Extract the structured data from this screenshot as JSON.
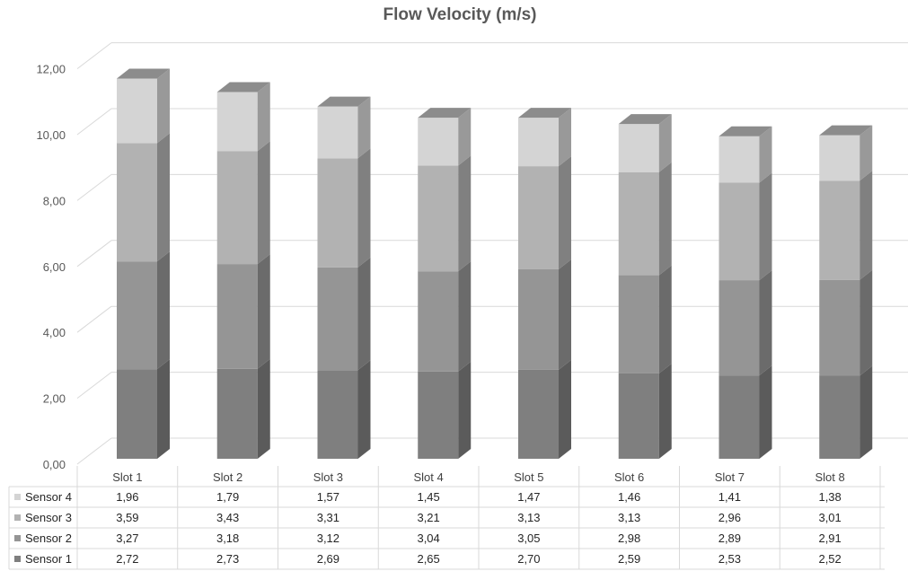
{
  "chart_data": {
    "type": "bar",
    "stacked": true,
    "three_d": true,
    "title": "Flow Velocity (m/s)",
    "categories": [
      "Slot 1",
      "Slot 2",
      "Slot 3",
      "Slot 4",
      "Slot 5",
      "Slot 6",
      "Slot 7",
      "Slot 8"
    ],
    "series": [
      {
        "name": "Sensor 1",
        "color": "#7f7f7f",
        "values": [
          2.72,
          2.73,
          2.69,
          2.65,
          2.7,
          2.59,
          2.53,
          2.52
        ],
        "labels": [
          "2,72",
          "2,73",
          "2,69",
          "2,65",
          "2,70",
          "2,59",
          "2,53",
          "2,52"
        ]
      },
      {
        "name": "Sensor 2",
        "color": "#959595",
        "values": [
          3.27,
          3.18,
          3.12,
          3.04,
          3.05,
          2.98,
          2.89,
          2.91
        ],
        "labels": [
          "3,27",
          "3,18",
          "3,12",
          "3,04",
          "3,05",
          "2,98",
          "2,89",
          "2,91"
        ]
      },
      {
        "name": "Sensor 3",
        "color": "#b2b2b2",
        "values": [
          3.59,
          3.43,
          3.31,
          3.21,
          3.13,
          3.13,
          2.96,
          3.01
        ],
        "labels": [
          "3,59",
          "3,43",
          "3,31",
          "3,21",
          "3,13",
          "3,13",
          "2,96",
          "3,01"
        ]
      },
      {
        "name": "Sensor 4",
        "color": "#d4d4d4",
        "values": [
          1.96,
          1.79,
          1.57,
          1.45,
          1.47,
          1.46,
          1.41,
          1.38
        ],
        "labels": [
          "1,96",
          "1,79",
          "1,57",
          "1,45",
          "1,47",
          "1,46",
          "1,41",
          "1,38"
        ]
      }
    ],
    "ylim": [
      0,
      12
    ],
    "y_ticks": [
      0,
      2,
      4,
      6,
      8,
      10,
      12
    ],
    "y_tick_labels": [
      "0,00",
      "2,00",
      "4,00",
      "6,00",
      "8,00",
      "10,00",
      "12,00"
    ],
    "grid": true,
    "data_table": true,
    "legend": "data-table-left"
  }
}
